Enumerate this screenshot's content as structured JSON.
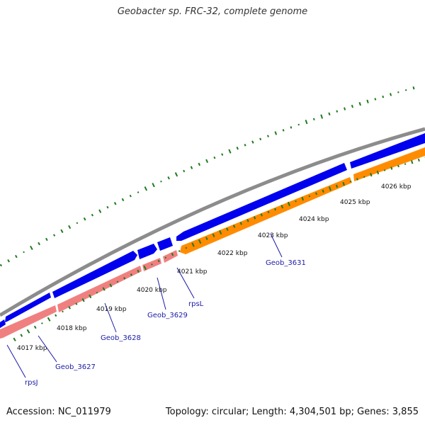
{
  "title": "Geobacter sp. FRC-32, complete genome",
  "accession": "Accession: NC_011979",
  "summary": "Topology: circular; Length: 4,304,501 bp; Genes: 3,855",
  "colors": {
    "backbone": "#8c8c8c",
    "cds_forward": "#0000ee",
    "cds_reverse_pink": "#f08080",
    "cds_reverse_orange": "#ff8c00",
    "gc_ticks": "#1e7a1e",
    "gene_label": "#1a1aa6"
  },
  "tick_labels": [
    "4017 kbp",
    "4018 kbp",
    "4019 kbp",
    "4020 kbp",
    "4021 kbp",
    "4022 kbp",
    "4023 kbp",
    "4024 kbp",
    "4025 kbp",
    "4026 kbp"
  ],
  "gene_labels": [
    "rpsJ",
    "Geob_3627",
    "Geob_3628",
    "Geob_3629",
    "rpsL",
    "Geob_3631"
  ]
}
